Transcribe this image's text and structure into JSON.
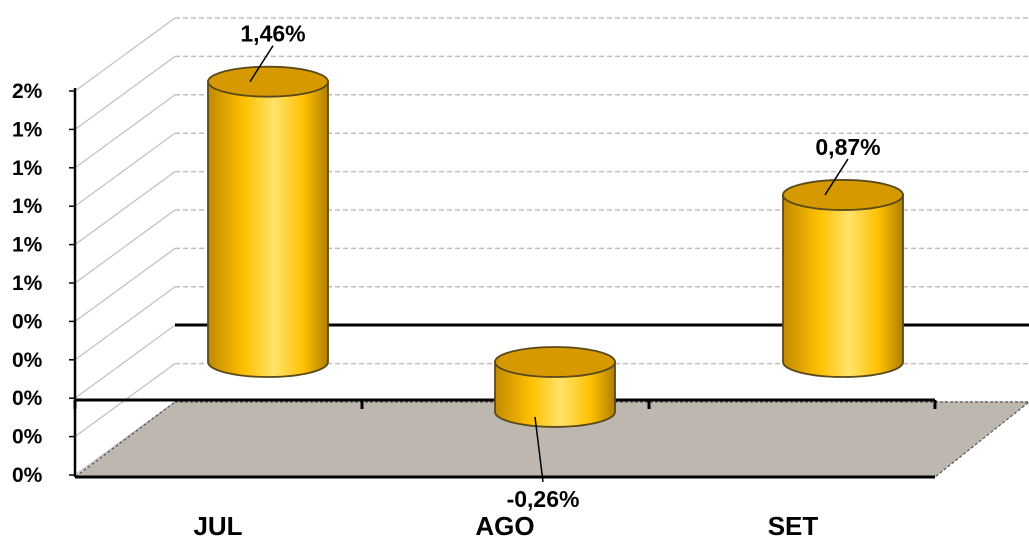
{
  "chart_data": {
    "type": "bar",
    "style": "3d-cylinder",
    "categories": [
      "JUL",
      "AGO",
      "SET"
    ],
    "series": [
      {
        "values": [
          1.46,
          -0.26,
          0.87
        ]
      }
    ],
    "data_labels": [
      "1,46%",
      "-0,26%",
      "0,87%"
    ],
    "y_tick_labels": [
      "0%",
      "0%",
      "0%",
      "0%",
      "0%",
      "1%",
      "1%",
      "1%",
      "1%",
      "1%",
      "2%"
    ],
    "ylim": [
      -0.4,
      1.6
    ],
    "title": "",
    "xlabel": "",
    "ylabel": "",
    "grid": true,
    "legend": "none",
    "colors": {
      "bar": "#FFC000",
      "bar_light": "#FFE36A",
      "bar_dark": "#C08A00",
      "bar_top": "#D69A00",
      "floor": "#BDB7B0",
      "gridline": "#BFBFBF"
    }
  }
}
